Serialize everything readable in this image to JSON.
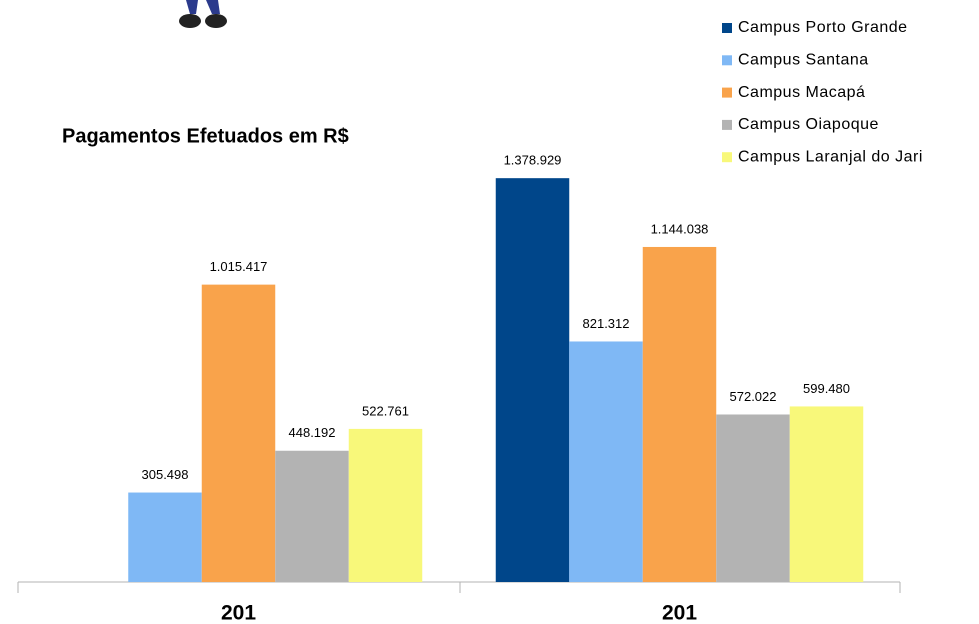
{
  "chart_data": {
    "type": "bar",
    "title": "Pagamentos Efetuados em R$",
    "categories": [
      "201",
      "201"
    ],
    "ylim": [
      0,
      1400000
    ],
    "legend": "top-right",
    "series": [
      {
        "name": "Campus Porto Grande",
        "color": "#00468a",
        "values": [
          null,
          1378929
        ],
        "value_labels": [
          null,
          "1.378.929"
        ]
      },
      {
        "name": "Campus Santana",
        "color": "#7fb8f5",
        "values": [
          305498,
          821312
        ],
        "value_labels": [
          "305.498",
          "821.312"
        ]
      },
      {
        "name": "Campus Macapá",
        "color": "#f9a34b",
        "values": [
          1015417,
          1144038
        ],
        "value_labels": [
          "1.015.417",
          "1.144.038"
        ]
      },
      {
        "name": "Campus Oiapoque",
        "color": "#b3b3b3",
        "values": [
          448192,
          572022
        ],
        "value_labels": [
          "448.192",
          "572.022"
        ]
      },
      {
        "name": "Campus Laranjal do Jari",
        "color": "#f8f87a",
        "values": [
          522761,
          599480
        ],
        "value_labels": [
          "522.761",
          "599.480"
        ]
      }
    ]
  }
}
